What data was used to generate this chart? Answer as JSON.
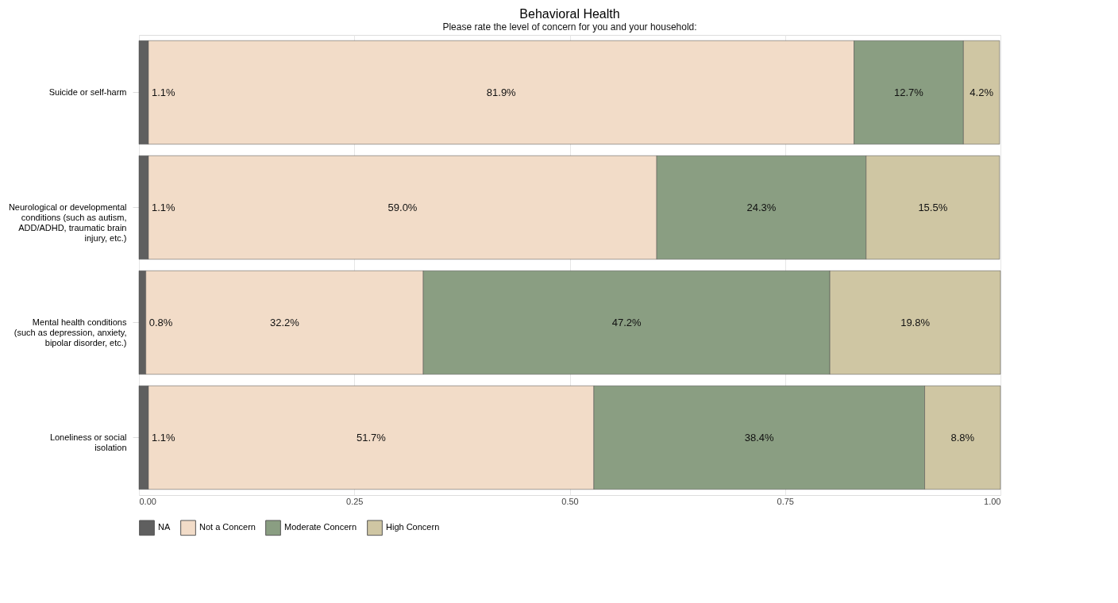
{
  "chart_data": {
    "type": "bar",
    "orientation": "horizontal",
    "stacked": true,
    "title": "Behavioral Health",
    "subtitle": "Please rate the level of concern for you and your household:",
    "categories": [
      "Suicide or self-harm",
      "Neurological or developmental conditions (such as autism, ADD/ADHD, traumatic brain injury, etc.)",
      "Mental health conditions (such as depression, anxiety, bipolar disorder, etc.)",
      "Loneliness or social isolation"
    ],
    "series": [
      {
        "name": "NA",
        "color": "#5f5f5f",
        "values": [
          0.011,
          0.011,
          0.008,
          0.011
        ],
        "value_labels": [
          "1.1%",
          "1.1%",
          "0.8%",
          "1.1%"
        ]
      },
      {
        "name": "Not a Concern",
        "color": "#f2dcc8",
        "values": [
          0.819,
          0.59,
          0.322,
          0.517
        ],
        "value_labels": [
          "81.9%",
          "59.0%",
          "32.2%",
          "51.7%"
        ]
      },
      {
        "name": "Moderate Concern",
        "color": "#8a9e82",
        "values": [
          0.127,
          0.243,
          0.472,
          0.384
        ],
        "value_labels": [
          "12.7%",
          "24.3%",
          "47.2%",
          "38.4%"
        ]
      },
      {
        "name": "High Concern",
        "color": "#cfc6a3",
        "values": [
          0.042,
          0.155,
          0.198,
          0.088
        ],
        "value_labels": [
          "4.2%",
          "15.5%",
          "19.8%",
          "8.8%"
        ]
      }
    ],
    "xlim": [
      0,
      1
    ],
    "xticks": [
      {
        "value": 0,
        "label": "0.00"
      },
      {
        "value": 0.25,
        "label": "0.25"
      },
      {
        "value": 0.5,
        "label": "0.50"
      },
      {
        "value": 0.75,
        "label": "0.75"
      },
      {
        "value": 1,
        "label": "1.00"
      }
    ],
    "grid": "x",
    "legend": "bottom"
  }
}
